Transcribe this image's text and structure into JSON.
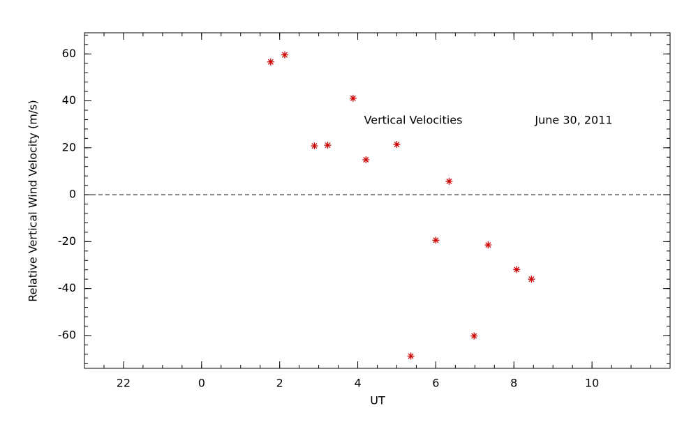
{
  "chart_data": {
    "type": "scatter",
    "x_label": "UT",
    "y_label": "Relative Vertical Wind Velocity (m/s)",
    "annotations": [
      "Vertical Velocities",
      "June 30, 2011"
    ],
    "series": [
      {
        "name": "Vertical Velocities",
        "color": "#cc0000",
        "x": [
          1.77,
          2.13,
          2.89,
          3.23,
          3.88,
          4.21,
          5.0,
          5.36,
          6.0,
          6.34,
          6.98,
          7.34,
          8.07,
          8.45
        ],
        "values": [
          56.6,
          59.6,
          20.8,
          21.1,
          41.1,
          14.9,
          21.4,
          -68.8,
          -19.4,
          5.7,
          -60.2,
          -21.4,
          -31.9,
          -36.0
        ]
      }
    ],
    "xlim": [
      -3,
      12
    ],
    "xticks": [
      {
        "value": -2,
        "label": "22"
      },
      0,
      2,
      4,
      6,
      8,
      10
    ],
    "ylim": [
      -74,
      69
    ],
    "yticks": [
      -60,
      -40,
      -20,
      0,
      20,
      40,
      60
    ],
    "zero_line": true,
    "grid": false
  }
}
